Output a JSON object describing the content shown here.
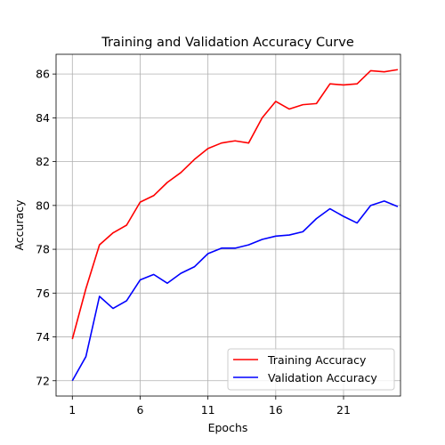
{
  "chart_data": {
    "type": "line",
    "title": "Training and Validation Accuracy Curve",
    "xlabel": "Epochs",
    "ylabel": "Accuracy",
    "xlim": [
      -0.2,
      25.2
    ],
    "ylim": [
      71.3,
      86.9
    ],
    "grid": true,
    "legend_position": "lower right",
    "xticks": [
      1,
      6,
      11,
      16,
      21
    ],
    "yticks": [
      72,
      74,
      76,
      78,
      80,
      82,
      84,
      86
    ],
    "x": [
      1,
      2,
      3,
      4,
      5,
      6,
      7,
      8,
      9,
      10,
      11,
      12,
      13,
      14,
      15,
      16,
      17,
      18,
      19,
      20,
      21,
      22,
      23,
      24,
      25
    ],
    "series": [
      {
        "name": "Training Accuracy",
        "color": "#ff0000",
        "values": [
          73.9,
          76.2,
          78.2,
          78.75,
          79.1,
          80.15,
          80.45,
          81.05,
          81.5,
          82.1,
          82.6,
          82.85,
          82.95,
          82.85,
          84.0,
          84.75,
          84.4,
          84.6,
          84.65,
          85.55,
          85.5,
          85.55,
          86.15,
          86.1,
          86.2
        ]
      },
      {
        "name": "Validation Accuracy",
        "color": "#0000ff",
        "values": [
          72.0,
          73.1,
          75.85,
          75.3,
          75.65,
          76.6,
          76.85,
          76.45,
          76.9,
          77.2,
          77.8,
          78.05,
          78.05,
          78.2,
          78.45,
          78.6,
          78.65,
          78.8,
          79.4,
          79.85,
          79.5,
          79.2,
          80.0,
          80.2,
          79.95
        ]
      }
    ]
  }
}
